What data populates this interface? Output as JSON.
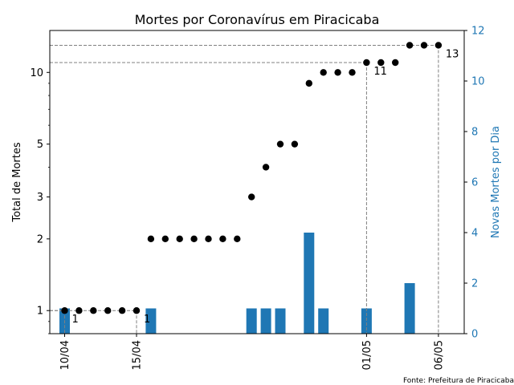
{
  "chart_data": {
    "type": "bar+scatter",
    "title": "Mortes por Coronavírus em Piracicaba",
    "ylabel_left": "Total de Mortes",
    "ylabel_right": "Novas Mortes por Dia",
    "yscale_left": "log",
    "ylim_left": [
      0.8,
      15
    ],
    "ylim_right": [
      0,
      12
    ],
    "yticks_left": [
      1,
      2,
      3,
      5,
      10
    ],
    "yticks_right": [
      0,
      2,
      4,
      6,
      8,
      10,
      12
    ],
    "xticks": [
      "10/04",
      "15/04",
      "01/05",
      "06/05"
    ],
    "source": "Fonte: Prefeitura de Piracicaba",
    "dates": [
      "10/04",
      "11/04",
      "12/04",
      "13/04",
      "14/04",
      "15/04",
      "16/04",
      "17/04",
      "18/04",
      "19/04",
      "20/04",
      "21/04",
      "22/04",
      "23/04",
      "24/04",
      "25/04",
      "26/04",
      "27/04",
      "28/04",
      "29/04",
      "30/04",
      "01/05",
      "02/05",
      "03/05",
      "04/05",
      "05/05",
      "06/05"
    ],
    "total_deaths": [
      1,
      1,
      1,
      1,
      1,
      1,
      2,
      2,
      2,
      2,
      2,
      2,
      2,
      3,
      4,
      5,
      5,
      9,
      10,
      10,
      10,
      11,
      11,
      11,
      13,
      13,
      13
    ],
    "daily_deaths": [
      1,
      0,
      0,
      0,
      0,
      0,
      1,
      0,
      0,
      0,
      0,
      0,
      0,
      1,
      1,
      1,
      0,
      4,
      1,
      0,
      0,
      1,
      0,
      0,
      2,
      0,
      0
    ],
    "annotations": [
      {
        "date": "10/04",
        "value": 1,
        "label": "1"
      },
      {
        "date": "15/04",
        "value": 1,
        "label": "1"
      },
      {
        "date": "01/05",
        "value": 11,
        "label": "11"
      },
      {
        "date": "06/05",
        "value": 13,
        "label": "13"
      }
    ],
    "colors": {
      "bars": "#1f77b4",
      "points": "#000000",
      "right_axis": "#1f77b4",
      "reference_lines": "#808080"
    }
  }
}
